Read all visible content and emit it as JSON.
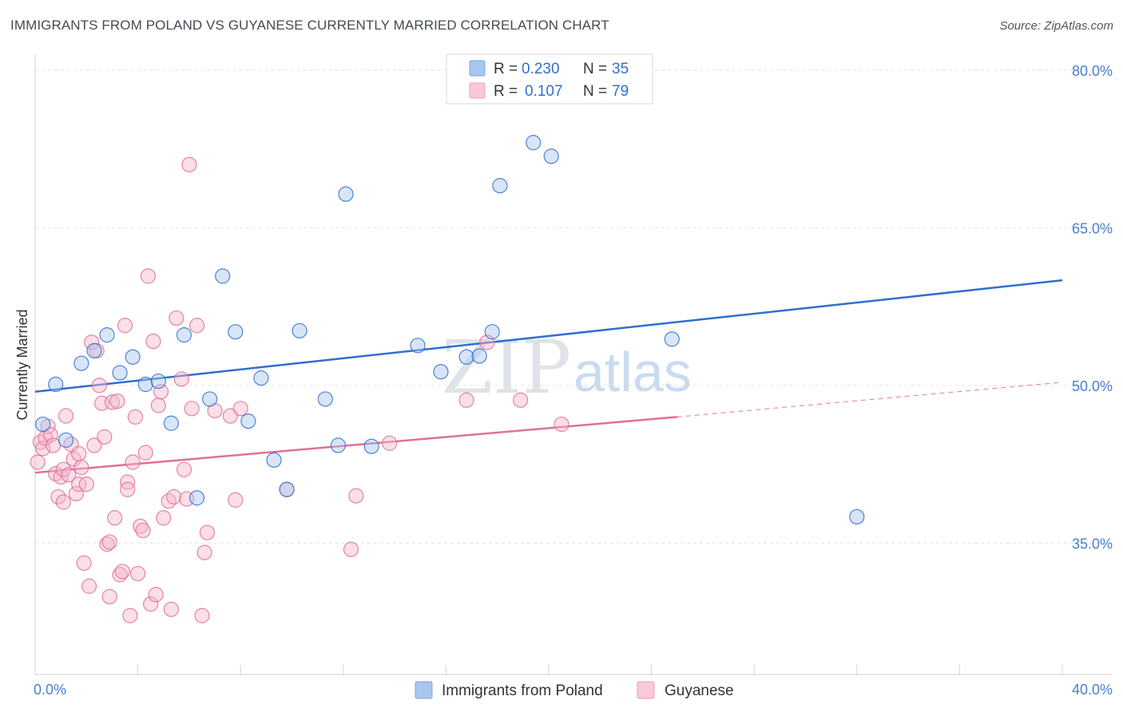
{
  "title": "IMMIGRANTS FROM POLAND VS GUYANESE CURRENTLY MARRIED CORRELATION CHART",
  "source": "Source: ZipAtlas.com",
  "watermark": {
    "part1": "ZIP",
    "part2": "atlas"
  },
  "legend_top": {
    "rows": [
      {
        "r_label": "R =",
        "r_value": "0.230",
        "n_label": "N =",
        "n_value": "35"
      },
      {
        "r_label": "R =",
        "r_value": "0.107",
        "n_label": "N =",
        "n_value": "79"
      }
    ]
  },
  "colors": {
    "blue": "#2f6fd0",
    "blue_fill": "#a8c6ee",
    "pink": "#e07098",
    "pink_fill": "#f4b5cb",
    "grid": "#dfe2e6",
    "tick_text": "#4a7fd0"
  },
  "chart_data": {
    "type": "scatter",
    "title": "IMMIGRANTS FROM POLAND VS GUYANESE CURRENTLY MARRIED CORRELATION CHART",
    "xlabel": "",
    "ylabel": "Currently Married",
    "xlim": [
      0,
      40
    ],
    "ylim": [
      22.5,
      81.5
    ],
    "x_tick_labels": [
      "0.0%",
      "40.0%"
    ],
    "y_ticks": [
      35,
      50,
      65,
      80
    ],
    "y_tick_labels": [
      "35.0%",
      "50.0%",
      "65.0%",
      "80.0%"
    ],
    "grid": true,
    "legend_position": "top-center and bottom",
    "series": [
      {
        "name": "Immigrants from Poland",
        "color": "#2f6fd0",
        "R": 0.23,
        "N": 35,
        "trend": {
          "x0": 0,
          "y0": 49.4,
          "x1": 40,
          "y1": 60.0
        },
        "points": [
          [
            0.3,
            46.3
          ],
          [
            0.8,
            50.1
          ],
          [
            1.2,
            44.8
          ],
          [
            1.8,
            52.1
          ],
          [
            2.3,
            53.3
          ],
          [
            2.8,
            54.8
          ],
          [
            3.3,
            51.2
          ],
          [
            3.8,
            52.7
          ],
          [
            4.3,
            50.1
          ],
          [
            4.8,
            50.4
          ],
          [
            5.3,
            46.4
          ],
          [
            5.8,
            54.8
          ],
          [
            6.3,
            39.3
          ],
          [
            6.8,
            48.7
          ],
          [
            7.3,
            60.4
          ],
          [
            7.8,
            55.1
          ],
          [
            8.3,
            46.6
          ],
          [
            8.8,
            50.7
          ],
          [
            9.3,
            42.9
          ],
          [
            9.8,
            40.1
          ],
          [
            10.3,
            55.2
          ],
          [
            11.3,
            48.7
          ],
          [
            11.8,
            44.3
          ],
          [
            12.1,
            68.2
          ],
          [
            13.1,
            44.2
          ],
          [
            14.9,
            53.8
          ],
          [
            15.8,
            51.3
          ],
          [
            16.8,
            52.7
          ],
          [
            17.3,
            52.8
          ],
          [
            17.8,
            55.1
          ],
          [
            18.1,
            69.0
          ],
          [
            19.4,
            73.1
          ],
          [
            20.1,
            71.8
          ],
          [
            24.8,
            54.4
          ],
          [
            32.0,
            37.5
          ]
        ]
      },
      {
        "name": "Guyanese",
        "color": "#e07098",
        "R": 0.107,
        "N": 79,
        "trend": {
          "x0": 0,
          "y0": 41.7,
          "x1": 25,
          "y1": 47.0,
          "x_dash_end": 40,
          "y_dash_end": 50.3
        },
        "points": [
          [
            0.1,
            42.7
          ],
          [
            0.2,
            44.6
          ],
          [
            0.3,
            44.0
          ],
          [
            0.4,
            45.0
          ],
          [
            0.5,
            46.1
          ],
          [
            0.6,
            45.3
          ],
          [
            0.7,
            44.3
          ],
          [
            0.8,
            41.6
          ],
          [
            0.9,
            39.4
          ],
          [
            1.0,
            41.3
          ],
          [
            1.1,
            42.0
          ],
          [
            1.1,
            38.9
          ],
          [
            1.2,
            47.1
          ],
          [
            1.3,
            41.5
          ],
          [
            1.4,
            44.4
          ],
          [
            1.5,
            43.0
          ],
          [
            1.6,
            39.7
          ],
          [
            1.7,
            40.6
          ],
          [
            1.7,
            43.5
          ],
          [
            1.8,
            42.2
          ],
          [
            1.9,
            33.1
          ],
          [
            2.0,
            40.6
          ],
          [
            2.1,
            30.9
          ],
          [
            2.2,
            54.1
          ],
          [
            2.3,
            44.3
          ],
          [
            2.4,
            53.3
          ],
          [
            2.5,
            50.0
          ],
          [
            2.6,
            48.3
          ],
          [
            2.7,
            45.1
          ],
          [
            2.8,
            34.9
          ],
          [
            2.9,
            29.9
          ],
          [
            2.9,
            35.1
          ],
          [
            3.0,
            48.4
          ],
          [
            3.1,
            37.4
          ],
          [
            3.2,
            48.5
          ],
          [
            3.3,
            32.0
          ],
          [
            3.4,
            32.3
          ],
          [
            3.5,
            55.7
          ],
          [
            3.6,
            40.8
          ],
          [
            3.6,
            40.1
          ],
          [
            3.7,
            28.1
          ],
          [
            3.8,
            42.7
          ],
          [
            3.9,
            47.0
          ],
          [
            4.0,
            32.1
          ],
          [
            4.1,
            36.6
          ],
          [
            4.2,
            36.2
          ],
          [
            4.3,
            43.6
          ],
          [
            4.4,
            60.4
          ],
          [
            4.5,
            29.2
          ],
          [
            4.6,
            54.2
          ],
          [
            4.7,
            30.1
          ],
          [
            4.8,
            48.1
          ],
          [
            4.9,
            49.4
          ],
          [
            5.0,
            37.4
          ],
          [
            5.2,
            39.0
          ],
          [
            5.3,
            28.7
          ],
          [
            5.4,
            39.4
          ],
          [
            5.5,
            56.4
          ],
          [
            5.7,
            50.6
          ],
          [
            5.8,
            42.0
          ],
          [
            5.9,
            39.2
          ],
          [
            6.0,
            71.0
          ],
          [
            6.1,
            47.8
          ],
          [
            6.3,
            55.7
          ],
          [
            6.5,
            28.1
          ],
          [
            6.6,
            34.1
          ],
          [
            6.7,
            36.0
          ],
          [
            7.0,
            47.6
          ],
          [
            7.6,
            47.1
          ],
          [
            7.8,
            39.1
          ],
          [
            8.0,
            47.8
          ],
          [
            9.8,
            40.1
          ],
          [
            12.3,
            34.4
          ],
          [
            12.5,
            39.5
          ],
          [
            13.8,
            44.5
          ],
          [
            16.8,
            48.6
          ],
          [
            17.6,
            54.1
          ],
          [
            18.9,
            48.6
          ],
          [
            20.5,
            46.3
          ]
        ]
      }
    ]
  }
}
